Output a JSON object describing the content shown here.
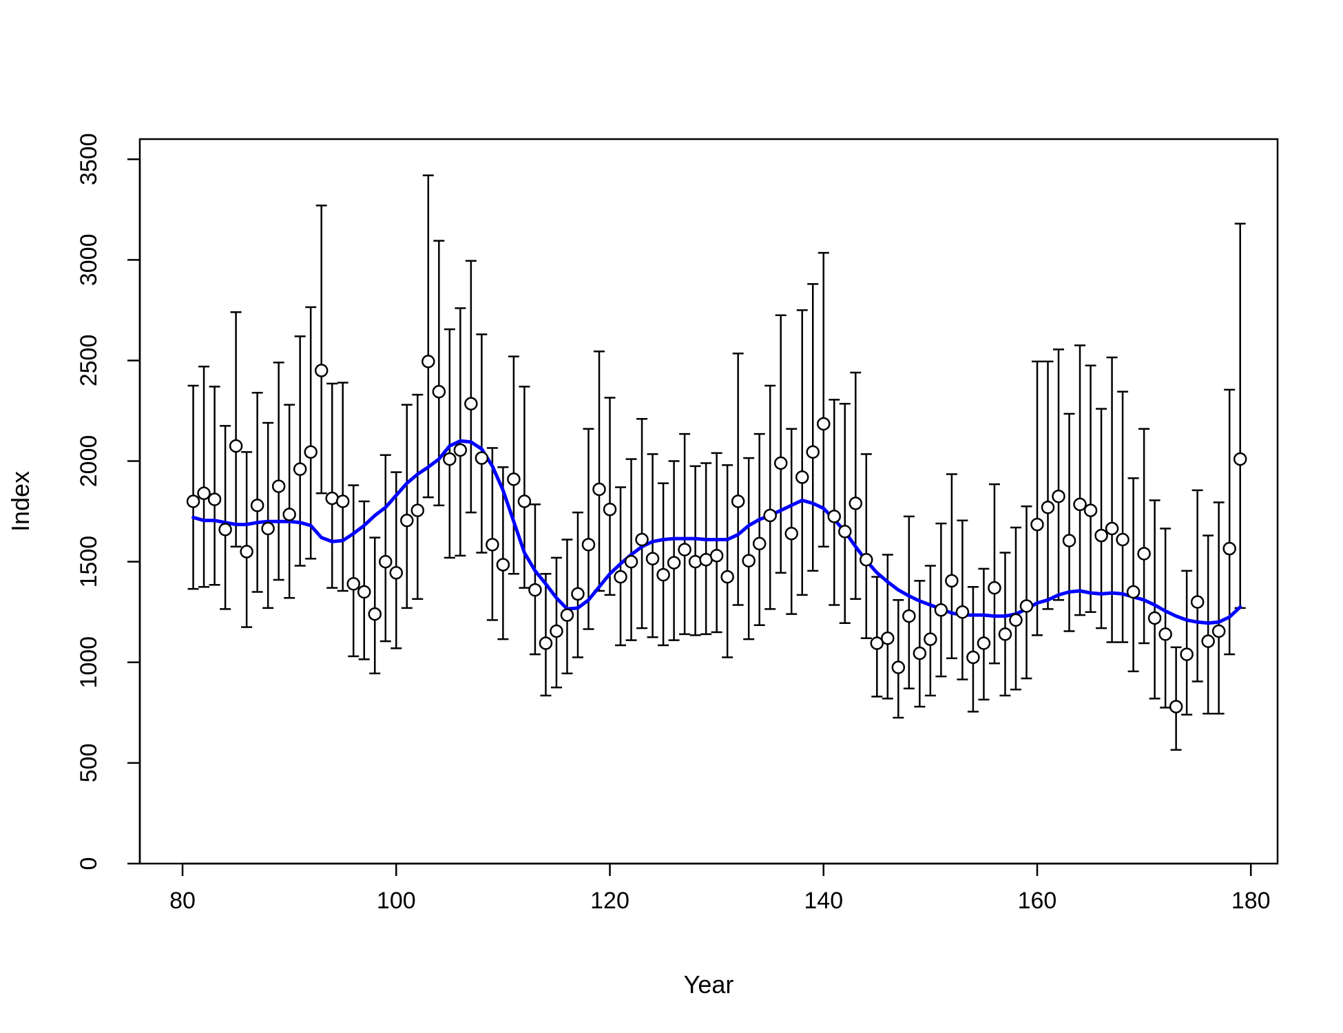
{
  "chart_data": {
    "type": "scatter",
    "title": "",
    "xlabel": "Year",
    "ylabel": "Index",
    "xlim": [
      76,
      182.5
    ],
    "ylim": [
      0,
      3600
    ],
    "x_ticks": [
      80,
      100,
      120,
      140,
      160,
      180
    ],
    "y_ticks": [
      0,
      500,
      1000,
      1500,
      2000,
      2500,
      3000,
      3500
    ],
    "grid": false,
    "legend": "none",
    "colors": {
      "points": "#000000",
      "smooth": "#0000ff",
      "error_bars": "#000000"
    },
    "series": [
      {
        "type": "points_with_error_bars",
        "x": [
          81,
          82,
          83,
          84,
          85,
          86,
          87,
          88,
          89,
          90,
          91,
          92,
          93,
          94,
          95,
          96,
          97,
          98,
          99,
          100,
          101,
          102,
          103,
          104,
          105,
          106,
          107,
          108,
          109,
          110,
          111,
          112,
          113,
          114,
          115,
          116,
          117,
          118,
          119,
          120,
          121,
          122,
          123,
          124,
          125,
          126,
          127,
          128,
          129,
          130,
          131,
          132,
          133,
          134,
          135,
          136,
          137,
          138,
          139,
          140,
          141,
          142,
          143,
          144,
          145,
          146,
          147,
          148,
          149,
          150,
          151,
          152,
          153,
          154,
          155,
          156,
          157,
          158,
          159,
          160,
          161,
          162,
          163,
          164,
          165,
          166,
          167,
          168,
          169,
          170,
          171,
          172,
          173,
          174,
          175,
          176,
          177,
          178,
          179
        ],
        "y": [
          1800,
          1840,
          1810,
          1660,
          2075,
          1550,
          1780,
          1665,
          1875,
          1735,
          1960,
          2045,
          2450,
          1815,
          1800,
          1390,
          1350,
          1240,
          1500,
          1445,
          1705,
          1755,
          2495,
          2345,
          2010,
          2055,
          2285,
          2015,
          1585,
          1485,
          1910,
          1800,
          1360,
          1095,
          1155,
          1235,
          1340,
          1585,
          1860,
          1760,
          1425,
          1500,
          1610,
          1515,
          1435,
          1495,
          1560,
          1500,
          1510,
          1530,
          1425,
          1800,
          1505,
          1590,
          1730,
          1990,
          1640,
          1920,
          2045,
          2185,
          1725,
          1650,
          1790,
          1510,
          1095,
          1120,
          975,
          1230,
          1045,
          1115,
          1260,
          1405,
          1250,
          1025,
          1095,
          1370,
          1140,
          1210,
          1280,
          1685,
          1770,
          1825,
          1605,
          1785,
          1755,
          1630,
          1665,
          1610,
          1350,
          1540,
          1220,
          1140,
          780,
          1040,
          1300,
          1105,
          1155,
          1565,
          2010
        ],
        "upper": [
          2375,
          2470,
          2370,
          2175,
          2740,
          2045,
          2340,
          2190,
          2490,
          2280,
          2620,
          2765,
          3270,
          2385,
          2390,
          1880,
          1800,
          1620,
          2030,
          1945,
          2280,
          2330,
          3420,
          3095,
          2655,
          2760,
          2995,
          2630,
          2065,
          1970,
          2520,
          2370,
          1785,
          1440,
          1520,
          1610,
          1745,
          2160,
          2545,
          2315,
          1870,
          2010,
          2210,
          2035,
          1890,
          2000,
          2135,
          1975,
          1990,
          2040,
          1980,
          2535,
          2015,
          2135,
          2375,
          2725,
          2160,
          2750,
          2880,
          3035,
          2305,
          2285,
          2440,
          2035,
          1425,
          1535,
          1310,
          1725,
          1405,
          1480,
          1690,
          1935,
          1705,
          1375,
          1465,
          1885,
          1545,
          1670,
          1775,
          2495,
          2495,
          2555,
          2235,
          2575,
          2475,
          2260,
          2515,
          2345,
          1915,
          2160,
          1805,
          1665,
          1075,
          1455,
          1855,
          1630,
          1795,
          2355,
          3180
        ],
        "lower": [
          1365,
          1375,
          1385,
          1265,
          1575,
          1175,
          1350,
          1270,
          1410,
          1320,
          1480,
          1515,
          1840,
          1370,
          1355,
          1030,
          1015,
          945,
          1105,
          1070,
          1270,
          1315,
          1820,
          1780,
          1520,
          1530,
          1745,
          1545,
          1210,
          1115,
          1440,
          1370,
          1040,
          835,
          875,
          945,
          1025,
          1165,
          1355,
          1335,
          1085,
          1110,
          1170,
          1125,
          1085,
          1110,
          1140,
          1135,
          1140,
          1150,
          1025,
          1285,
          1115,
          1185,
          1265,
          1445,
          1240,
          1335,
          1455,
          1575,
          1285,
          1195,
          1315,
          1120,
          830,
          820,
          725,
          870,
          780,
          835,
          930,
          1020,
          915,
          755,
          815,
          995,
          835,
          865,
          920,
          1135,
          1265,
          1310,
          1155,
          1235,
          1250,
          1170,
          1100,
          1100,
          955,
          1095,
          820,
          775,
          565,
          740,
          905,
          745,
          745,
          1040,
          1270
        ]
      },
      {
        "type": "smooth_line",
        "x": [
          81,
          82,
          83,
          84,
          85,
          86,
          87,
          88,
          89,
          90,
          91,
          92,
          93,
          94,
          95,
          96,
          97,
          98,
          99,
          100,
          101,
          102,
          103,
          104,
          105,
          106,
          107,
          108,
          109,
          110,
          111,
          112,
          113,
          114,
          115,
          116,
          117,
          118,
          119,
          120,
          121,
          122,
          123,
          124,
          125,
          126,
          127,
          128,
          129,
          130,
          131,
          132,
          133,
          134,
          135,
          136,
          137,
          138,
          139,
          140,
          141,
          142,
          143,
          144,
          145,
          146,
          147,
          148,
          149,
          150,
          151,
          152,
          153,
          154,
          155,
          156,
          157,
          158,
          159,
          160,
          161,
          162,
          163,
          164,
          165,
          166,
          167,
          168,
          169,
          170,
          171,
          172,
          173,
          174,
          175,
          176,
          177,
          178,
          179
        ],
        "y": [
          1720,
          1705,
          1705,
          1695,
          1685,
          1685,
          1695,
          1700,
          1700,
          1700,
          1695,
          1680,
          1620,
          1600,
          1605,
          1640,
          1680,
          1730,
          1770,
          1830,
          1890,
          1935,
          1970,
          2010,
          2075,
          2100,
          2095,
          2060,
          1975,
          1855,
          1700,
          1545,
          1455,
          1390,
          1320,
          1265,
          1270,
          1310,
          1375,
          1440,
          1490,
          1535,
          1575,
          1600,
          1610,
          1615,
          1615,
          1615,
          1610,
          1610,
          1610,
          1635,
          1680,
          1710,
          1730,
          1755,
          1780,
          1805,
          1790,
          1765,
          1710,
          1650,
          1575,
          1505,
          1445,
          1400,
          1360,
          1330,
          1305,
          1285,
          1265,
          1245,
          1235,
          1235,
          1235,
          1230,
          1230,
          1240,
          1265,
          1295,
          1310,
          1335,
          1350,
          1355,
          1345,
          1340,
          1345,
          1340,
          1325,
          1310,
          1285,
          1255,
          1230,
          1210,
          1200,
          1195,
          1200,
          1225,
          1275
        ]
      }
    ]
  }
}
